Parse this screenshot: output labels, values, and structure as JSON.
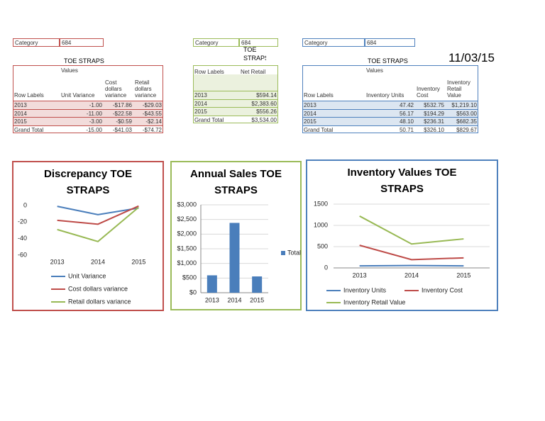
{
  "date": "11/03/15",
  "tables": [
    {
      "category_label": "Category",
      "category": "684",
      "title": "TOE STRAPS",
      "values_label": "Values",
      "columns": [
        "Row Labels",
        "Unit Variance",
        "Cost dollars variance",
        "Retail dollars variance"
      ],
      "rows": [
        [
          "2013",
          "-1.00",
          "-$17.86",
          "-$29.03"
        ],
        [
          "2014",
          "-11.00",
          "-$22.58",
          "-$43.55"
        ],
        [
          "2015",
          "-3.00",
          "-$0.59",
          "-$2.14"
        ],
        [
          "Grand Total",
          "-15.00",
          "-$41.03",
          "-$74.72"
        ]
      ]
    },
    {
      "category_label": "Category",
      "category": "684",
      "title": "TOE STRAPS",
      "columns": [
        "Row Labels",
        "Net Retail"
      ],
      "rows": [
        [
          "2013",
          "$594.14"
        ],
        [
          "2014",
          "$2,383.60"
        ],
        [
          "2015",
          "$556.26"
        ],
        [
          "Grand Total",
          "$3,534.00"
        ]
      ]
    },
    {
      "category_label": "Category",
      "category": "684",
      "title": "TOE STRAPS",
      "values_label": "Values",
      "columns": [
        "Row Labels",
        "Inventory Units",
        "Inventory Cost",
        "Inventory Retail Value"
      ],
      "rows": [
        [
          "2013",
          "47.42",
          "$532.75",
          "$1,219.10"
        ],
        [
          "2014",
          "56.17",
          "$194.29",
          "$563.00"
        ],
        [
          "2015",
          "48.10",
          "$236.31",
          "$682.35"
        ],
        [
          "Grand Total",
          "50.71",
          "$326.10",
          "$829.67"
        ]
      ]
    }
  ],
  "chart_data": [
    {
      "type": "line",
      "title": "Discrepancy TOE STRAPS",
      "categories": [
        "2013",
        "2014",
        "2015"
      ],
      "series": [
        {
          "name": "Unit Variance",
          "color": "#4a7ebb",
          "values": [
            -1,
            -11,
            -3
          ]
        },
        {
          "name": "Cost dollars variance",
          "color": "#be4b48",
          "values": [
            -17.86,
            -22.58,
            -0.59
          ]
        },
        {
          "name": "Retail dollars variance",
          "color": "#98b954",
          "values": [
            -29.03,
            -43.55,
            -2.14
          ]
        }
      ],
      "ylim": [
        -60,
        0
      ],
      "yticks": [
        -60,
        -40,
        -20,
        0
      ],
      "grid": false,
      "legend": "bottom"
    },
    {
      "type": "bar",
      "title": "Annual Sales TOE STRAPS",
      "categories": [
        "2013",
        "2014",
        "2015"
      ],
      "series": [
        {
          "name": "Total",
          "color": "#4a7ebb",
          "values": [
            594.14,
            2383.6,
            556.26
          ]
        }
      ],
      "ylim": [
        0,
        3000
      ],
      "yticks": [
        {
          "value": 0,
          "label": "$0"
        },
        {
          "value": 500,
          "label": "$500"
        },
        {
          "value": 1000,
          "label": "$1,000"
        },
        {
          "value": 1500,
          "label": "$1,500"
        },
        {
          "value": 2000,
          "label": "$2,000"
        },
        {
          "value": 2500,
          "label": "$2,500"
        },
        {
          "value": 3000,
          "label": "$3,000"
        }
      ],
      "grid": true,
      "legend": "right"
    },
    {
      "type": "line",
      "title": "Inventory Values TOE STRAPS",
      "categories": [
        "2013",
        "2014",
        "2015"
      ],
      "series": [
        {
          "name": "Inventory Units",
          "color": "#4a7ebb",
          "values": [
            47.42,
            56.17,
            48.1
          ]
        },
        {
          "name": "Inventory Cost",
          "color": "#be4b48",
          "values": [
            532.75,
            194.29,
            236.31
          ]
        },
        {
          "name": "Inventory Retail Value",
          "color": "#98b954",
          "values": [
            1219.1,
            563,
            682.35
          ]
        }
      ],
      "ylim": [
        0,
        1500
      ],
      "yticks": [
        0,
        500,
        1000,
        1500
      ],
      "grid": true,
      "legend": "bottom"
    }
  ]
}
